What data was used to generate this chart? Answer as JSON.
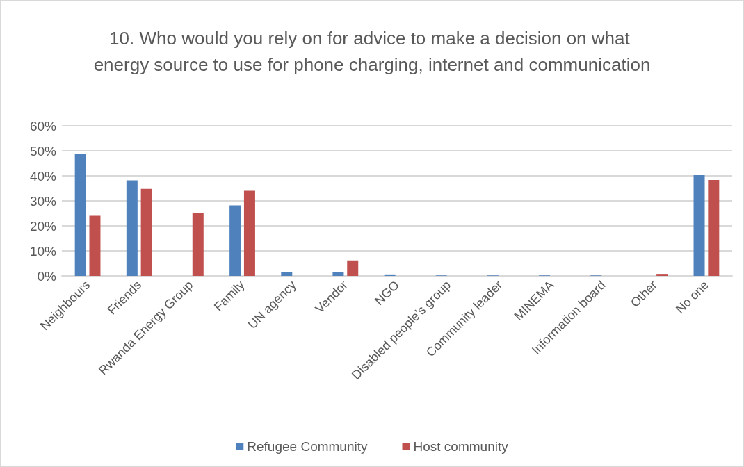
{
  "chart_data": {
    "type": "bar",
    "title": "10. Who would you rely on for advice to make a decision on what energy source to use for phone charging, internet and communication",
    "categories": [
      "Neighbours",
      "Friends",
      "Rwanda Energy Group",
      "Family",
      "UN agency",
      "Vendor",
      "NGO",
      "Disabled people's group",
      "Community leader",
      "MINEMA",
      "Information board",
      "Other",
      "No one"
    ],
    "series": [
      {
        "name": "Refugee Community",
        "color": "#4f81bd",
        "values": [
          48.6,
          38.2,
          0,
          28.2,
          1.6,
          1.6,
          0.6,
          0.2,
          0.2,
          0.2,
          0.2,
          0,
          40.3
        ]
      },
      {
        "name": "Host community",
        "color": "#c0504d",
        "values": [
          24.0,
          34.8,
          25.0,
          34.0,
          0,
          6.2,
          0,
          0,
          0,
          0,
          0,
          0.8,
          38.3
        ]
      }
    ],
    "ylim": [
      0,
      60
    ],
    "yticks": [
      {
        "value": 0,
        "label": "0%"
      },
      {
        "value": 10,
        "label": "10%"
      },
      {
        "value": 20,
        "label": "20%"
      },
      {
        "value": 30,
        "label": "30%"
      },
      {
        "value": 40,
        "label": "40%"
      },
      {
        "value": 50,
        "label": "50%"
      },
      {
        "value": 60,
        "label": "60%"
      }
    ],
    "grid": "y",
    "legend": "bottom"
  }
}
